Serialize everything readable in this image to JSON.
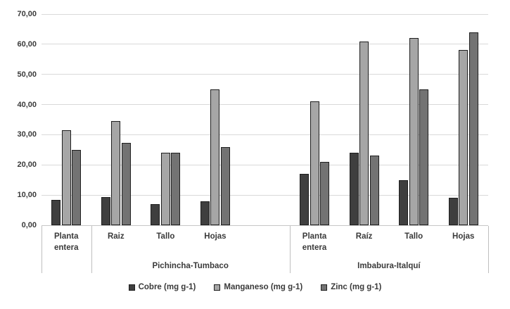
{
  "chart_data": {
    "type": "bar",
    "title": "",
    "xlabel": "",
    "ylabel": "",
    "ylim": [
      0,
      70
    ],
    "ytick_step": 10,
    "ytick_labels": [
      "0,00",
      "10,00",
      "20,00",
      "30,00",
      "40,00",
      "50,00",
      "60,00",
      "70,00"
    ],
    "grid": true,
    "legend_position": "bottom",
    "categories": [
      "Planta entera",
      "Raiz",
      "Tallo",
      "Hojas",
      "",
      "Planta entera",
      "Raíz",
      "Tallo",
      "Hojas"
    ],
    "category_groups": [
      {
        "label": "",
        "start": 0,
        "end": 1
      },
      {
        "label": "Pichincha-Tumbaco",
        "start": 1,
        "end": 5
      },
      {
        "label": "Imbabura-Italquí",
        "start": 5,
        "end": 9
      }
    ],
    "series": [
      {
        "name": "Cobre (mg g-1)",
        "color": "#3f3f3f",
        "values": [
          8.5,
          9.3,
          7,
          8,
          null,
          17,
          24,
          15,
          9
        ]
      },
      {
        "name": "Manganeso (mg g-1)",
        "color": "#a6a6a6",
        "values": [
          31.5,
          34.5,
          24,
          45,
          null,
          41,
          61,
          62,
          58
        ]
      },
      {
        "name": "Zinc (mg g-1)",
        "color": "#737373",
        "values": [
          25,
          27.3,
          24,
          26,
          null,
          21,
          23,
          45,
          64
        ]
      }
    ]
  },
  "colors": {
    "background": "#ffffff",
    "gridline": "#d9d9d9",
    "axis_line": "#c6c6c6",
    "divider": "#bfbfbf",
    "text": "#3a3a3a",
    "bar_border": "#1e1e1e"
  }
}
